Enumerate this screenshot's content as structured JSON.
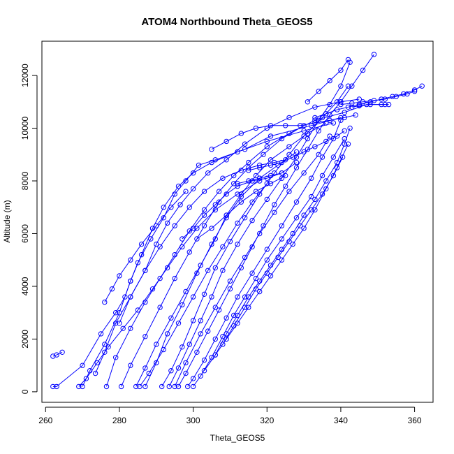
{
  "chart_data": {
    "type": "line",
    "title": "ATOM4 Northbound Theta_GEOS5",
    "xlabel": "Theta_GEOS5",
    "ylabel": "Altitude (m)",
    "xlim": [
      259,
      365
    ],
    "ylim": [
      -400,
      13300
    ],
    "xticks": [
      260,
      280,
      300,
      320,
      340,
      360
    ],
    "yticks": [
      0,
      2000,
      4000,
      6000,
      8000,
      10000,
      12000
    ],
    "series_color": "#0000ff",
    "marker": "open-circle",
    "series": [
      {
        "x": [
          262.0,
          263.0,
          264.5
        ],
        "y": [
          1350,
          1400,
          1500
        ]
      },
      {
        "x": [
          262.0,
          263.0,
          270.0,
          275.0,
          279.0,
          281.5,
          283.0,
          285.0,
          288.5,
          292.0,
          295.0,
          298.0,
          301.5,
          306.0,
          314.0,
          321.0,
          332.0,
          340.0
        ],
        "y": [
          200,
          200,
          1000,
          2200,
          3000,
          3600,
          4200,
          4900,
          5800,
          6600,
          7500,
          8000,
          8600,
          8800,
          9200,
          9700,
          10100,
          10400
        ]
      },
      {
        "x": [
          270.0,
          272.0,
          276.0,
          280.0,
          283.0,
          286.0,
          289.0,
          292.0,
          296.0,
          300.0,
          305.0,
          312.0,
          320.0,
          330.0,
          338.0
        ],
        "y": [
          200,
          800,
          1800,
          3000,
          4200,
          5200,
          6200,
          7000,
          7800,
          8300,
          8700,
          9100,
          9500,
          9900,
          10200
        ]
      },
      {
        "x": [
          273.5,
          276.0,
          279.0,
          283.0,
          287.0,
          290.0,
          293.0,
          296.5,
          300.0,
          304.0,
          309.0,
          314.0,
          320.0,
          326.0,
          333.0,
          340.0,
          345.0
        ],
        "y": [
          700,
          1500,
          2600,
          3600,
          4600,
          5600,
          6400,
          7100,
          7700,
          8300,
          8800,
          9400,
          10000,
          10400,
          10800,
          11000,
          11100
        ]
      },
      {
        "x": [
          276.5,
          279.0,
          283.0,
          287.0,
          291.0,
          295.0,
          299.0,
          303.0,
          307.0,
          311.0,
          315.0,
          320.0,
          326.0,
          333.0,
          341.0,
          347.0,
          352.0
        ],
        "y": [
          200,
          1300,
          2400,
          3400,
          4300,
          5200,
          6100,
          6900,
          7600,
          8200,
          8700,
          9300,
          9800,
          10300,
          10600,
          10900,
          10900
        ]
      },
      {
        "x": [
          280.5,
          283.0,
          287.0,
          291.0,
          295.0,
          299.0,
          303.0,
          307.0,
          311.0,
          315.0,
          319.0,
          324.0,
          330.0
        ],
        "y": [
          200,
          1000,
          2100,
          3200,
          4300,
          5300,
          6300,
          7200,
          7900,
          8500,
          9000,
          9600,
          10100
        ]
      },
      {
        "x": [
          284.5,
          287.0,
          290.0,
          294.0,
          298.0,
          302.0,
          306.0,
          309.0,
          313.0,
          317.0,
          321.0,
          326.0,
          331.0,
          336.0
        ],
        "y": [
          200,
          900,
          1800,
          2800,
          3800,
          4800,
          5800,
          6700,
          7500,
          8200,
          8800,
          9300,
          9800,
          10200
        ]
      },
      {
        "x": [
          287.0,
          290.0,
          293.0,
          297.0,
          301.0,
          305.0,
          309.0,
          313.0,
          318.0,
          323.0,
          328.0
        ],
        "y": [
          200,
          1100,
          2200,
          3300,
          4500,
          5600,
          6600,
          7400,
          8100,
          8600,
          9100
        ]
      },
      {
        "x": [
          291.5,
          294.0,
          297.0,
          300.0,
          303.0,
          306.0,
          310.0,
          314.0,
          318.0,
          322.0,
          326.0,
          330.0,
          335.0,
          339.0,
          342.0
        ],
        "y": [
          200,
          800,
          1700,
          2700,
          3700,
          4700,
          5700,
          6600,
          7500,
          8300,
          9000,
          9700,
          10400,
          11000,
          11600
        ]
      },
      {
        "x": [
          293.5,
          296.0,
          299.0,
          302.0,
          305.0,
          308.0,
          312.0,
          316.0,
          320.0,
          324.0,
          328.0,
          331.0,
          334.0,
          337.0,
          340.0,
          342.5
        ],
        "y": [
          200,
          900,
          1800,
          2700,
          3600,
          4600,
          5600,
          6500,
          7300,
          8100,
          8900,
          9600,
          10300,
          10900,
          11600,
          12500
        ]
      },
      {
        "x": [
          296.0,
          298.0,
          301.0,
          304.0,
          307.0,
          310.0,
          313.0,
          316.0,
          319.0,
          322.0,
          325.0,
          328.0,
          331.0,
          334.0,
          337.0,
          340.0,
          343.0,
          346.0,
          349.0
        ],
        "y": [
          200,
          700,
          1500,
          2300,
          3100,
          3900,
          4700,
          5500,
          6300,
          7100,
          7800,
          8500,
          9200,
          9900,
          10500,
          11000,
          11600,
          12200,
          12800
        ]
      },
      {
        "x": [
          298.5,
          300.0,
          303.0,
          306.0,
          309.0,
          312.0,
          316.0,
          320.0,
          324.0,
          328.0,
          332.0,
          335.0,
          338.0,
          340.0
        ],
        "y": [
          200,
          500,
          1200,
          2000,
          2800,
          3600,
          4500,
          5400,
          6300,
          7200,
          8100,
          8900,
          9600,
          10300
        ]
      },
      {
        "x": [
          300.0,
          302.0,
          305.0,
          308.0,
          311.0,
          314.0,
          317.0,
          320.0,
          324.0,
          328.0,
          332.0,
          335.0,
          338.0,
          341.0
        ],
        "y": [
          200,
          600,
          1300,
          2100,
          2900,
          3600,
          4300,
          5000,
          5800,
          6600,
          7400,
          8200,
          8900,
          9600
        ]
      },
      {
        "x": [
          303.0,
          306.0,
          309.0,
          312.0,
          315.0,
          318.0,
          321.0,
          324.0,
          327.0,
          330.0,
          333.0,
          336.0,
          339.0,
          341.0,
          342.5
        ],
        "y": [
          800,
          1400,
          2200,
          2900,
          3600,
          4200,
          4800,
          5400,
          6000,
          6700,
          7300,
          8000,
          8700,
          9400,
          10000
        ]
      },
      {
        "x": [
          306.0,
          309.0,
          312.0,
          315.0,
          318.0,
          321.0,
          324.0,
          327.0,
          330.0,
          333.0,
          336.0,
          339.0,
          342.0
        ],
        "y": [
          1400,
          2000,
          2600,
          3200,
          3800,
          4400,
          5000,
          5600,
          6200,
          6900,
          7700,
          8500,
          9400
        ]
      },
      {
        "x": [
          308.0,
          311.0,
          314.0,
          317.0,
          320.0,
          323.0,
          326.0,
          329.0,
          332.0,
          335.0,
          338.0,
          340.5
        ],
        "y": [
          1800,
          2500,
          3200,
          3900,
          4500,
          5100,
          5700,
          6300,
          6900,
          7500,
          8200,
          8900
        ]
      },
      {
        "x": [
          280.0,
          283.0,
          287.0,
          291.0,
          295.0,
          299.0,
          303.0,
          308.0,
          313.0,
          318.0,
          322.0,
          325.0
        ],
        "y": [
          2600,
          3600,
          4600,
          5500,
          6300,
          7000,
          7600,
          8100,
          8400,
          8600,
          8700,
          8800
        ]
      },
      {
        "x": [
          297.0,
          300.0,
          303.0,
          306.0,
          309.0,
          312.0,
          316.0,
          320.0,
          324.0,
          328.0
        ],
        "y": [
          5800,
          6200,
          6700,
          7100,
          7500,
          7800,
          8000,
          8100,
          8300,
          8700
        ]
      },
      {
        "x": [
          301.0,
          305.0,
          309.0,
          313.0,
          317.0,
          321.0,
          325.0
        ],
        "y": [
          5800,
          6200,
          6700,
          7200,
          7600,
          7900,
          8200
        ]
      },
      {
        "x": [
          312.0,
          315.0,
          318.0,
          321.0,
          324.0
        ],
        "y": [
          7900,
          8000,
          8100,
          8200,
          8300
        ]
      },
      {
        "x": [
          305.0,
          309.0,
          313.0,
          317.0,
          321.0,
          325.0,
          329.0,
          333.0,
          337.0,
          341.0,
          344.0
        ],
        "y": [
          9200,
          9500,
          9800,
          10000,
          10100,
          10100,
          10100,
          10200,
          10300,
          10400,
          10500
        ]
      },
      {
        "x": [
          333.0,
          336.0,
          339.0,
          342.0,
          345.0,
          348.0,
          351.0,
          354.0,
          357.0,
          360.0,
          362.0
        ],
        "y": [
          10400,
          10550,
          10700,
          10800,
          10900,
          11000,
          11100,
          11200,
          11300,
          11450,
          11600
        ]
      },
      {
        "x": [
          340.0,
          343.0,
          346.0,
          349.0,
          352.0,
          355.0,
          358.0,
          360.0
        ],
        "y": [
          10900,
          10950,
          11000,
          11050,
          11100,
          11200,
          11300,
          11400
        ]
      },
      {
        "x": [
          343.0,
          345.0,
          348.0,
          351.0,
          353.0
        ],
        "y": [
          10800,
          10850,
          10900,
          10900,
          10900
        ]
      },
      {
        "x": [
          315.0,
          318.0,
          321.0,
          324.0,
          327.0,
          330.0,
          333.0,
          336.0,
          339.0,
          341.0
        ],
        "y": [
          8400,
          8500,
          8600,
          8700,
          8900,
          9100,
          9300,
          9500,
          9700,
          9900
        ]
      },
      {
        "x": [
          269.0,
          271.0,
          274.0,
          277.0,
          281.0,
          285.0,
          289.0,
          293.0,
          297.0,
          301.0,
          306.0,
          312.0,
          318.0
        ],
        "y": [
          200,
          500,
          1100,
          1700,
          2400,
          3100,
          3900,
          4700,
          5500,
          6200,
          6900,
          7500,
          8000
        ]
      },
      {
        "x": [
          285.5,
          288.0,
          292.0,
          296.0,
          300.0,
          304.0,
          308.0,
          312.0,
          316.0,
          320.0
        ],
        "y": [
          200,
          700,
          1600,
          2600,
          3600,
          4600,
          5500,
          6400,
          7200,
          7900
        ]
      },
      {
        "x": [
          295.0,
          298.0,
          302.0,
          306.0,
          310.0,
          314.0,
          318.0,
          322.0,
          326.0,
          330.0,
          334.0,
          337.0
        ],
        "y": [
          200,
          1100,
          2200,
          3200,
          4200,
          5100,
          6000,
          6800,
          7600,
          8300,
          9000,
          9700
        ]
      },
      {
        "x": [
          276.0,
          278.0,
          280.0,
          283.0,
          286.0,
          290.0,
          294.0,
          298.0
        ],
        "y": [
          3400,
          3900,
          4400,
          5000,
          5600,
          6300,
          7000,
          7600
        ]
      },
      {
        "x": [
          331.0,
          334.0,
          337.0,
          340.0,
          342.0
        ],
        "y": [
          11000,
          11400,
          11800,
          12200,
          12600
        ]
      }
    ]
  }
}
